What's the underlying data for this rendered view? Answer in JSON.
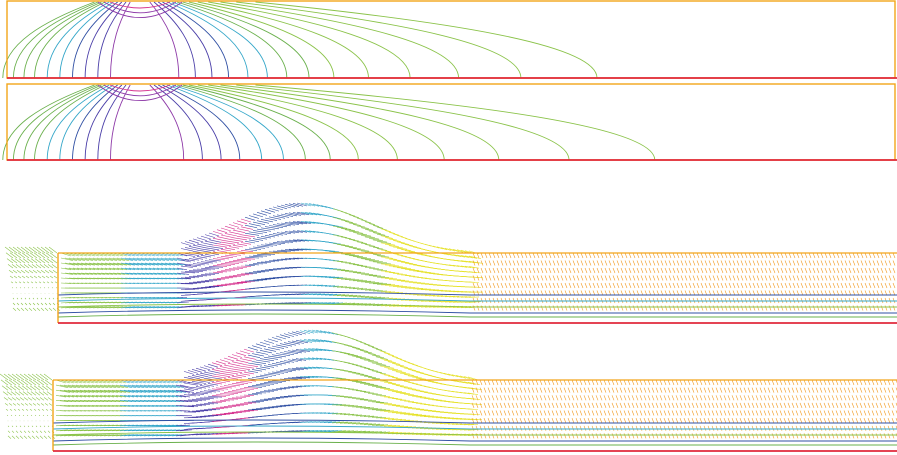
{
  "figure": {
    "panels": [
      {
        "kind": "contour",
        "label": "contour-panel-top"
      },
      {
        "kind": "contour",
        "label": "contour-panel-bottom"
      },
      {
        "kind": "vector",
        "label": "vector-panel-top"
      },
      {
        "kind": "vector",
        "label": "vector-panel-bottom"
      }
    ],
    "colors": {
      "frame": "#f2a51a",
      "baseline": "#e02a3b",
      "palette": [
        "#8bc34a",
        "#6ab04c",
        "#35a7c9",
        "#2f4fa3",
        "#4a3ea8",
        "#8e3aa8",
        "#d6338f",
        "#e6e22c",
        "#f29a1f"
      ]
    }
  }
}
